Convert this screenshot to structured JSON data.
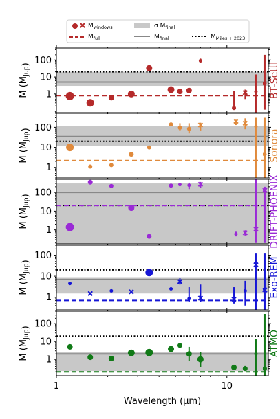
{
  "chart_data": {
    "type": "scatter",
    "xlabel": "Wavelength (μm)",
    "x_scale": "log",
    "y_scale": "log",
    "xlim": [
      1,
      17.5
    ],
    "x_ticks": [
      "1",
      "10"
    ],
    "legend": {
      "placement": "top",
      "entries": [
        {
          "key": "circle",
          "label_html": "M<sub>windows</sub>"
        },
        {
          "key": "band",
          "label_html": "σ M<sub>final</sub>"
        },
        {
          "key": "dashed",
          "label_html": "M<sub>full</sub>"
        },
        {
          "key": "solid",
          "label_html": "M<sub>final</sub>"
        },
        {
          "key": "dotted",
          "label_html": "M<sub>Miles + 2023</sub>"
        }
      ]
    },
    "miles2023": 20,
    "panels": [
      {
        "model": "BT-Settl",
        "color": "#b52a2a",
        "ylabel": "M (M<sub>Jup</sub>)",
        "ylim": [
          0.08,
          500
        ],
        "y_ticks": [
          1,
          10,
          100
        ],
        "band": [
          3,
          20
        ],
        "m_final": 5,
        "m_full": 0.8,
        "points": [
          {
            "x": 1.2,
            "y": 0.75,
            "size": 6,
            "marker": "o"
          },
          {
            "x": 1.58,
            "y": 0.3,
            "size": 5.5,
            "marker": "o"
          },
          {
            "x": 2.1,
            "y": 0.6,
            "size": 4,
            "marker": "o"
          },
          {
            "x": 2.75,
            "y": 1.0,
            "size": 5,
            "marker": "o"
          },
          {
            "x": 3.5,
            "y": 33,
            "size": 4.5,
            "marker": "o"
          },
          {
            "x": 4.7,
            "y": 1.8,
            "size": 5,
            "marker": "o"
          },
          {
            "x": 5.3,
            "y": 1.4,
            "size": 4,
            "marker": "o"
          },
          {
            "x": 6.0,
            "y": 1.6,
            "size": 4,
            "marker": "o"
          },
          {
            "x": 7.0,
            "y": 90,
            "size": 2.5,
            "marker": "o",
            "ylo": 65,
            "yhi": 120
          },
          {
            "x": 11.0,
            "y": 0.15,
            "size": 3,
            "marker": "o",
            "ylo": 0.15,
            "yhi": 1.5
          },
          {
            "x": 12.8,
            "y": 1.2,
            "size": 3,
            "marker": "x",
            "ylo": 0.5,
            "yhi": 1.8
          },
          {
            "x": 14.8,
            "y": 1.4,
            "size": 2.5,
            "marker": "o",
            "ylo": 0.08,
            "yhi": 14
          },
          {
            "x": 16.7,
            "y": 4,
            "size": 2.5,
            "marker": "o",
            "ylo": 0.12,
            "yhi": 200
          }
        ]
      },
      {
        "model": "Sonora",
        "color": "#e08a3c",
        "ylabel": "M (M<sub>Jup</sub>)",
        "ylim": [
          0.3,
          500
        ],
        "y_ticks": [
          1,
          10,
          100
        ],
        "band": [
          12,
          120
        ],
        "m_final": 35,
        "m_full": 2.2,
        "points": [
          {
            "x": 1.2,
            "y": 10,
            "size": 5.5,
            "marker": "o"
          },
          {
            "x": 1.58,
            "y": 1.1,
            "size": 3,
            "marker": "o"
          },
          {
            "x": 2.1,
            "y": 1.3,
            "size": 3,
            "marker": "o"
          },
          {
            "x": 2.75,
            "y": 4.5,
            "size": 3.5,
            "marker": "o"
          },
          {
            "x": 3.5,
            "y": 10,
            "size": 3,
            "marker": "o"
          },
          {
            "x": 4.7,
            "y": 140,
            "size": 3,
            "marker": "o"
          },
          {
            "x": 5.3,
            "y": 95,
            "size": 3,
            "marker": "o",
            "ylo": 70,
            "yhi": 160
          },
          {
            "x": 6.0,
            "y": 85,
            "size": 3,
            "marker": "o",
            "ylo": 50,
            "yhi": 160
          },
          {
            "x": 7.0,
            "y": 130,
            "size": 3,
            "marker": "x",
            "ylo": 70,
            "yhi": 170
          },
          {
            "x": 11.3,
            "y": 200,
            "size": 3,
            "marker": "x",
            "ylo": 130,
            "yhi": 260
          },
          {
            "x": 12.8,
            "y": 160,
            "size": 3,
            "marker": "x",
            "ylo": 80,
            "yhi": 280
          },
          {
            "x": 14.8,
            "y": 110,
            "size": 2.5,
            "marker": "o",
            "ylo": 0.3,
            "yhi": 300
          },
          {
            "x": 16.7,
            "y": 4.5,
            "size": 2.5,
            "marker": "o",
            "ylo": 0.3,
            "yhi": 300
          }
        ]
      },
      {
        "model": "DRIFT-PHOENIX",
        "color": "#9a2ad6",
        "ylabel": "M (M<sub>Jup</sub>)",
        "ylim": [
          0.18,
          500
        ],
        "y_ticks": [
          1,
          10,
          100
        ],
        "band": [
          0.18,
          300
        ],
        "m_final": 100,
        "m_full": 20,
        "points": [
          {
            "x": 1.2,
            "y": 1.4,
            "size": 6,
            "marker": "o"
          },
          {
            "x": 1.58,
            "y": 350,
            "size": 3.5,
            "marker": "o"
          },
          {
            "x": 2.1,
            "y": 220,
            "size": 3,
            "marker": "o"
          },
          {
            "x": 2.75,
            "y": 15,
            "size": 4.5,
            "marker": "o"
          },
          {
            "x": 3.5,
            "y": 0.45,
            "size": 3.5,
            "marker": "o"
          },
          {
            "x": 4.7,
            "y": 230,
            "size": 3,
            "marker": "o"
          },
          {
            "x": 5.3,
            "y": 260,
            "size": 2.5,
            "marker": "o"
          },
          {
            "x": 6.0,
            "y": 240,
            "size": 2.5,
            "marker": "o",
            "ylo": 150,
            "yhi": 330
          },
          {
            "x": 7.0,
            "y": 270,
            "size": 3,
            "marker": "x",
            "ylo": 180,
            "yhi": 360
          },
          {
            "x": 11.3,
            "y": 0.6,
            "size": 2.5,
            "marker": "o",
            "ylo": 0.45,
            "yhi": 0.8
          },
          {
            "x": 12.8,
            "y": 0.7,
            "size": 3,
            "marker": "x",
            "ylo": 0.5,
            "yhi": 0.95
          },
          {
            "x": 14.8,
            "y": 1.1,
            "size": 3,
            "marker": "x",
            "ylo": 0.2,
            "yhi": 500
          },
          {
            "x": 16.7,
            "y": 130,
            "size": 3,
            "marker": "x",
            "ylo": 0.2,
            "yhi": 200
          }
        ]
      },
      {
        "model": "Exo-REM",
        "color": "#1616d6",
        "ylabel": "M (M<sub>Jup</sub>)",
        "ylim": [
          0.25,
          300
        ],
        "y_ticks": [
          1,
          10,
          100
        ],
        "band": [
          1.5,
          9
        ],
        "m_final": 7,
        "m_full": 0.7,
        "points": [
          {
            "x": 1.2,
            "y": 4.5,
            "size": 2.5,
            "marker": "o"
          },
          {
            "x": 1.58,
            "y": 1.5,
            "size": 3,
            "marker": "x"
          },
          {
            "x": 2.1,
            "y": 2.0,
            "size": 2.5,
            "marker": "o"
          },
          {
            "x": 2.75,
            "y": 1.8,
            "size": 3,
            "marker": "x"
          },
          {
            "x": 3.5,
            "y": 15,
            "size": 5.5,
            "marker": "o"
          },
          {
            "x": 4.7,
            "y": 2.5,
            "size": 2.5,
            "marker": "o"
          },
          {
            "x": 5.3,
            "y": 5.5,
            "size": 3,
            "marker": "x",
            "ylo": 4,
            "yhi": 8
          },
          {
            "x": 6.0,
            "y": 0.85,
            "size": 2.5,
            "marker": "o",
            "ylo": 0.6,
            "yhi": 3
          },
          {
            "x": 7.0,
            "y": 0.9,
            "size": 3,
            "marker": "x",
            "ylo": 0.6,
            "yhi": 4
          },
          {
            "x": 11.0,
            "y": 0.8,
            "size": 3,
            "marker": "x",
            "ylo": 0.5,
            "yhi": 3
          },
          {
            "x": 12.8,
            "y": 2.0,
            "size": 2.5,
            "marker": "o",
            "ylo": 0.4,
            "yhi": 6
          },
          {
            "x": 14.8,
            "y": 35,
            "size": 3,
            "marker": "x",
            "ylo": 0.25,
            "yhi": 120
          },
          {
            "x": 16.7,
            "y": 2.2,
            "size": 3,
            "marker": "x",
            "ylo": 0.25,
            "yhi": 120
          }
        ]
      },
      {
        "model": "ATMO",
        "color": "#117a17",
        "ylabel": "M (M<sub>Jup</sub>)",
        "ylim": [
          0.12,
          500
        ],
        "y_ticks": [
          1,
          10,
          100
        ],
        "band": [
          0.22,
          2.5
        ],
        "m_final": 2,
        "m_full": 0.2,
        "points": [
          {
            "x": 1.2,
            "y": 5,
            "size": 4,
            "marker": "o"
          },
          {
            "x": 1.58,
            "y": 1.3,
            "size": 4,
            "marker": "o"
          },
          {
            "x": 2.1,
            "y": 1.1,
            "size": 4,
            "marker": "o"
          },
          {
            "x": 2.75,
            "y": 2.3,
            "size": 5,
            "marker": "o"
          },
          {
            "x": 3.5,
            "y": 2.4,
            "size": 5.5,
            "marker": "o"
          },
          {
            "x": 4.7,
            "y": 3.8,
            "size": 4.5,
            "marker": "o"
          },
          {
            "x": 5.3,
            "y": 6.0,
            "size": 3.5,
            "marker": "o"
          },
          {
            "x": 6.0,
            "y": 2.0,
            "size": 4,
            "marker": "o",
            "ylo": 0.8,
            "yhi": 5
          },
          {
            "x": 7.0,
            "y": 1.0,
            "size": 4.5,
            "marker": "o",
            "ylo": 0.35,
            "yhi": 2.6
          },
          {
            "x": 11.0,
            "y": 0.35,
            "size": 4,
            "marker": "o",
            "ylo": 0.25,
            "yhi": 0.45
          },
          {
            "x": 12.8,
            "y": 0.3,
            "size": 3.5,
            "marker": "o",
            "ylo": 0.22,
            "yhi": 0.42
          },
          {
            "x": 14.8,
            "y": 2.0,
            "size": 2.5,
            "marker": "o",
            "ylo": 0.12,
            "yhi": 14
          },
          {
            "x": 16.7,
            "y": 0.3,
            "size": 3,
            "marker": "o",
            "ylo": 0.12,
            "yhi": 350
          }
        ]
      }
    ]
  }
}
